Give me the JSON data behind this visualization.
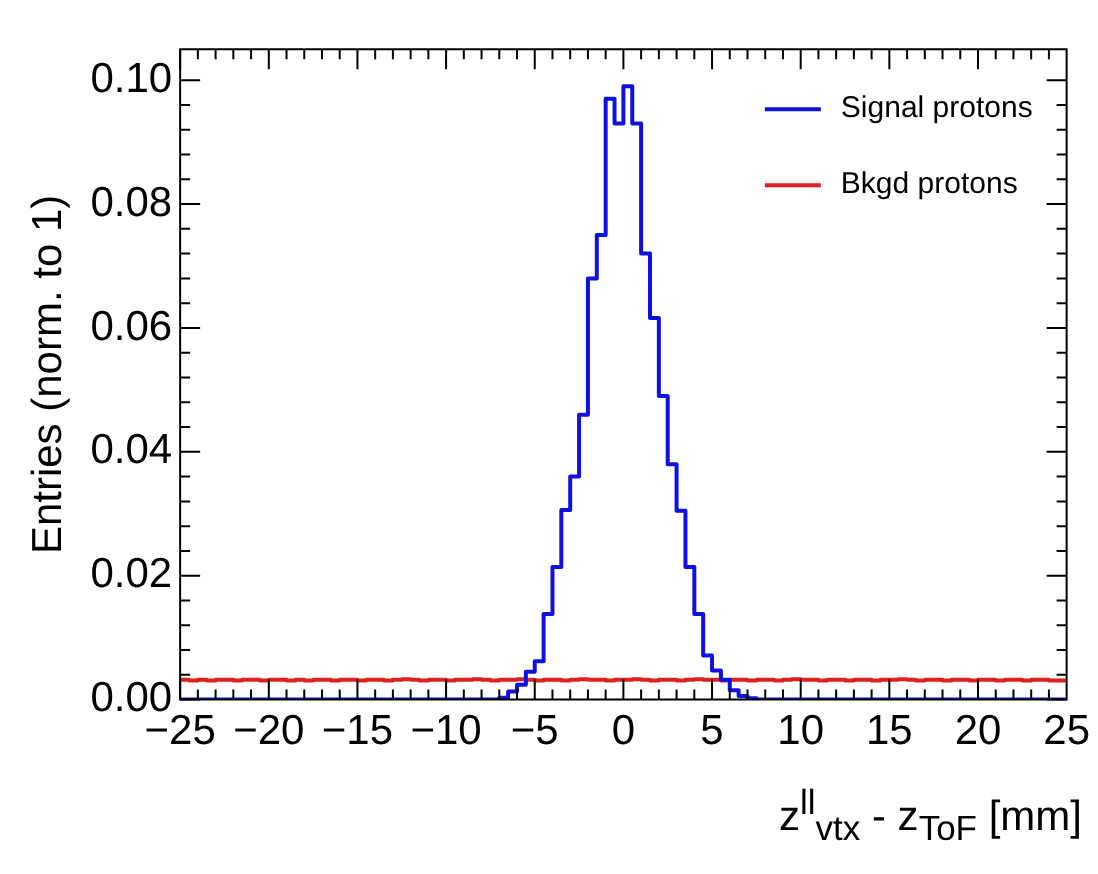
{
  "chart_data": {
    "type": "histogram",
    "xlabel": "z$^{ll}$$_{vtx}$ - z$_{ToF}$ [mm]",
    "ylabel": "Entries (norm. to 1)",
    "bins": [
      -25,
      -24.5,
      -24,
      -23.5,
      -23,
      -22.5,
      -22,
      -21.5,
      -21,
      -20.5,
      -20,
      -19.5,
      -19,
      -18.5,
      -18,
      -17.5,
      -17,
      -16.5,
      -16,
      -15.5,
      -15,
      -14.5,
      -14,
      -13.5,
      -13,
      -12.5,
      -12,
      -11.5,
      -11,
      -10.5,
      -10,
      -9.5,
      -9,
      -8.5,
      -8,
      -7.5,
      -7,
      -6.5,
      -6,
      -5.5,
      -5,
      -4.5,
      -4,
      -3.5,
      -3,
      -2.5,
      -2,
      -1.5,
      -1,
      -0.5,
      0,
      0.5,
      1,
      1.5,
      2,
      2.5,
      3,
      3.5,
      4,
      4.5,
      5,
      5.5,
      6,
      6.5,
      7,
      7.5,
      8,
      8.5,
      9,
      9.5,
      10,
      10.5,
      11,
      11.5,
      12,
      12.5,
      13,
      13.5,
      14,
      14.5,
      15,
      15.5,
      16,
      16.5,
      17,
      17.5,
      18,
      18.5,
      19,
      19.5,
      20,
      20.5,
      21,
      21.5,
      22,
      22.5,
      23,
      23.5,
      24,
      24.5,
      25
    ],
    "series": [
      {
        "name": "Signal protons",
        "color": "#1010e0",
        "values": [
          0,
          0,
          0,
          0,
          0,
          0,
          0,
          0,
          0,
          0,
          0,
          0,
          0,
          0,
          0,
          0,
          0,
          0,
          0,
          0,
          0,
          0,
          0,
          0,
          0,
          0,
          0,
          0,
          0,
          0,
          0,
          0,
          0,
          0,
          0,
          0,
          0.0003,
          0.0013,
          0.0024,
          0.0045,
          0.0062,
          0.0138,
          0.0214,
          0.0306,
          0.036,
          0.046,
          0.068,
          0.075,
          0.097,
          0.093,
          0.099,
          0.093,
          0.072,
          0.0616,
          0.049,
          0.038,
          0.0305,
          0.0214,
          0.0138,
          0.0071,
          0.0047,
          0.0032,
          0.0015,
          0.0006,
          0.0002,
          0,
          0,
          0,
          0,
          0,
          0,
          0,
          0,
          0,
          0,
          0,
          0,
          0,
          0,
          0,
          0,
          0,
          0,
          0,
          0,
          0,
          0,
          0,
          0,
          0,
          0,
          0,
          0,
          0,
          0,
          0,
          0,
          0,
          0,
          0
        ]
      },
      {
        "name": "Bkgd protons",
        "color": "#e02020",
        "values": [
          0.0032,
          0.0031,
          0.0032,
          0.0031,
          0.0032,
          0.0032,
          0.0031,
          0.0032,
          0.0032,
          0.0031,
          0.0032,
          0.0032,
          0.0031,
          0.0032,
          0.0031,
          0.0032,
          0.0032,
          0.0031,
          0.0032,
          0.0032,
          0.0031,
          0.0032,
          0.0032,
          0.0031,
          0.0032,
          0.0033,
          0.0032,
          0.0031,
          0.0032,
          0.0032,
          0.0031,
          0.0032,
          0.0032,
          0.0033,
          0.0032,
          0.0031,
          0.0032,
          0.0032,
          0.0033,
          0.0032,
          0.0031,
          0.0032,
          0.0032,
          0.0031,
          0.0032,
          0.0033,
          0.0032,
          0.0032,
          0.0031,
          0.0032,
          0.0032,
          0.0033,
          0.0032,
          0.0031,
          0.0032,
          0.0032,
          0.0031,
          0.0032,
          0.0033,
          0.0032,
          0.0032,
          0.0031,
          0.0032,
          0.0032,
          0.0031,
          0.0032,
          0.0032,
          0.0031,
          0.0032,
          0.0033,
          0.0032,
          0.0032,
          0.0031,
          0.0032,
          0.0032,
          0.0031,
          0.0032,
          0.0032,
          0.0031,
          0.0032,
          0.0032,
          0.0033,
          0.0032,
          0.0031,
          0.0032,
          0.0032,
          0.0031,
          0.0032,
          0.0032,
          0.0031,
          0.0032,
          0.0032,
          0.0031,
          0.0032,
          0.0032,
          0.0031,
          0.0032,
          0.0032,
          0.0031,
          0.0031
        ]
      }
    ],
    "xlim": [
      -25,
      25
    ],
    "xticks": [
      {
        "value": -25,
        "label": "−25"
      },
      {
        "value": -20,
        "label": "−20"
      },
      {
        "value": -15,
        "label": "−15"
      },
      {
        "value": -10,
        "label": "−10"
      },
      {
        "value": -5,
        "label": "−5"
      },
      0,
      5,
      10,
      15,
      20,
      25
    ],
    "ylim": [
      0,
      0.105
    ],
    "yticks": [
      {
        "value": 0,
        "label": "0.00"
      },
      {
        "value": 0.02,
        "label": "0.02"
      },
      {
        "value": 0.04,
        "label": "0.04"
      },
      {
        "value": 0.06,
        "label": "0.06"
      },
      {
        "value": 0.08,
        "label": "0.08"
      },
      {
        "value": 0.1,
        "label": "0.10"
      }
    ],
    "legend": "top right",
    "grid": false
  }
}
